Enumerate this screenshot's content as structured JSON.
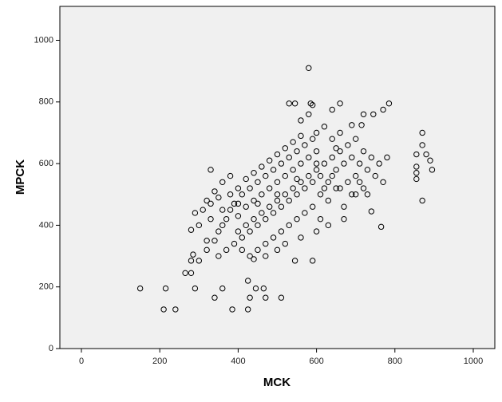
{
  "chart_data": {
    "type": "scatter",
    "x_label": "MCK",
    "y_label": "MPCK",
    "xlim": [
      -55,
      1055
    ],
    "ylim": [
      0,
      1110
    ],
    "xticks": [
      0,
      200,
      400,
      600,
      800,
      1000
    ],
    "yticks": [
      0,
      200,
      400,
      600,
      800,
      1000
    ],
    "grid": false,
    "color": "#000000",
    "background": "#f0f0f0",
    "x": [
      150,
      215,
      210,
      240,
      385,
      425,
      265,
      280,
      290,
      340,
      430,
      470,
      510,
      465,
      445,
      425,
      360,
      580,
      530,
      545,
      585,
      590,
      660,
      720,
      745,
      770,
      785,
      690,
      715,
      640,
      870,
      870,
      870,
      855,
      855,
      855,
      855,
      880,
      890,
      895,
      765,
      670,
      740,
      590,
      545,
      330,
      290,
      280,
      285,
      280,
      300,
      320,
      340,
      350,
      360,
      370,
      380,
      390,
      400,
      410,
      420,
      430,
      440,
      450,
      460,
      470,
      480,
      490,
      500,
      510,
      520,
      530,
      540,
      550,
      560,
      570,
      580,
      590,
      600,
      610,
      620,
      630,
      640,
      650,
      660,
      670,
      680,
      690,
      700,
      710,
      720,
      730,
      740,
      750,
      760,
      770,
      780,
      350,
      370,
      390,
      410,
      430,
      450,
      470,
      490,
      510,
      530,
      550,
      570,
      590,
      610,
      630,
      650,
      670,
      690,
      710,
      730,
      360,
      380,
      400,
      420,
      440,
      460,
      480,
      500,
      520,
      540,
      560,
      600,
      620,
      640,
      660,
      400,
      420,
      440,
      460,
      480,
      500,
      520,
      540,
      560,
      580,
      600,
      620,
      640,
      660,
      680,
      700,
      720,
      430,
      450,
      470,
      490,
      510,
      530,
      550,
      570,
      590,
      610,
      630,
      410,
      440,
      470,
      500,
      520,
      560,
      600,
      330,
      320,
      340,
      360,
      380,
      400,
      450,
      500,
      550,
      600,
      650,
      700,
      560,
      580,
      320,
      300,
      310,
      330,
      350
    ],
    "values": [
      195,
      195,
      127,
      127,
      127,
      127,
      245,
      245,
      195,
      165,
      165,
      165,
      165,
      195,
      195,
      220,
      195,
      910,
      795,
      795,
      795,
      790,
      795,
      760,
      760,
      775,
      795,
      725,
      725,
      775,
      700,
      660,
      480,
      630,
      590,
      570,
      550,
      630,
      610,
      580,
      395,
      420,
      445,
      285,
      285,
      580,
      440,
      385,
      305,
      285,
      285,
      320,
      350,
      380,
      400,
      420,
      450,
      470,
      430,
      500,
      460,
      520,
      480,
      540,
      500,
      560,
      520,
      580,
      540,
      600,
      560,
      620,
      580,
      640,
      600,
      660,
      620,
      680,
      640,
      560,
      600,
      540,
      620,
      580,
      640,
      600,
      660,
      620,
      560,
      600,
      640,
      580,
      620,
      560,
      600,
      540,
      620,
      300,
      320,
      340,
      360,
      380,
      400,
      420,
      440,
      460,
      480,
      500,
      520,
      540,
      500,
      480,
      520,
      460,
      500,
      540,
      500,
      450,
      500,
      520,
      550,
      570,
      590,
      610,
      630,
      650,
      670,
      690,
      700,
      720,
      680,
      700,
      380,
      400,
      420,
      440,
      460,
      480,
      500,
      520,
      540,
      560,
      580,
      520,
      560,
      520,
      540,
      500,
      520,
      300,
      320,
      340,
      360,
      380,
      400,
      420,
      440,
      460,
      420,
      400,
      320,
      290,
      300,
      320,
      340,
      360,
      380,
      420,
      480,
      510,
      540,
      560,
      470,
      470,
      500,
      550,
      600,
      650,
      680,
      740,
      760,
      350,
      400,
      450,
      470,
      490
    ]
  }
}
